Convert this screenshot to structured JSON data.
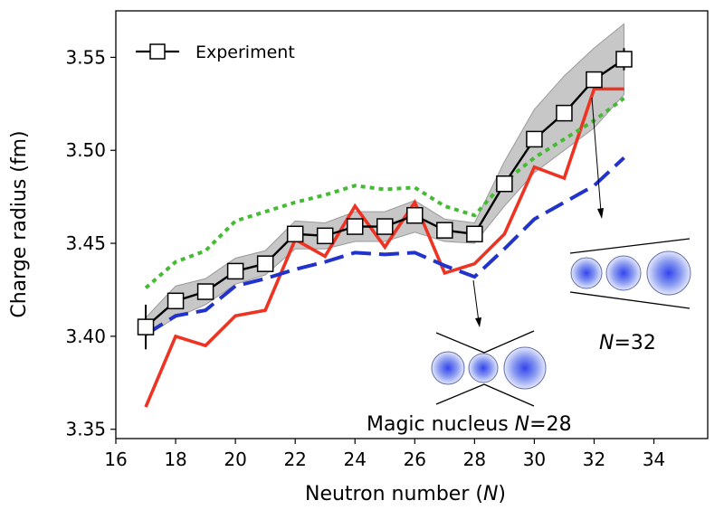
{
  "chart_data": {
    "type": "line",
    "xlabel": "Neutron number (",
    "xlabel_var": "N",
    "xlabel_end": ")",
    "ylabel": "Charge radius (fm)",
    "xlim": [
      16,
      35.8
    ],
    "ylim": [
      3.345,
      3.575
    ],
    "xticks": [
      16,
      18,
      20,
      22,
      24,
      26,
      28,
      30,
      32,
      34
    ],
    "yticks": [
      3.35,
      3.4,
      3.45,
      3.5,
      3.55
    ],
    "ytick_labels": [
      "3.35",
      "3.40",
      "3.45",
      "3.50",
      "3.55"
    ],
    "grid": false,
    "legend_position": "top-left",
    "series": [
      {
        "name": "Experiment",
        "style": "solid-with-open-square-markers",
        "color": "#000000",
        "x": [
          17,
          18,
          19,
          20,
          21,
          22,
          23,
          24,
          25,
          26,
          27,
          28,
          29,
          30,
          31,
          32,
          33
        ],
        "y": [
          3.405,
          3.419,
          3.424,
          3.435,
          3.439,
          3.455,
          3.454,
          3.459,
          3.459,
          3.465,
          3.457,
          3.455,
          3.482,
          3.506,
          3.52,
          3.538,
          3.549
        ],
        "yerr": [
          0.012,
          0.004,
          0.003,
          0.003,
          0.003,
          0.003,
          0.003,
          0.003,
          0.003,
          0.003,
          0.003,
          0.003,
          0.003,
          0.003,
          0.003,
          0.003,
          0.006
        ],
        "band_lower": [
          3.4,
          3.41,
          3.417,
          3.428,
          3.433,
          3.447,
          3.447,
          3.451,
          3.451,
          3.456,
          3.451,
          3.45,
          3.47,
          3.488,
          3.5,
          3.512,
          3.53
        ],
        "band_upper": [
          3.41,
          3.427,
          3.431,
          3.442,
          3.446,
          3.462,
          3.461,
          3.467,
          3.467,
          3.473,
          3.463,
          3.461,
          3.494,
          3.522,
          3.54,
          3.555,
          3.568
        ]
      },
      {
        "style": "solid",
        "color": "#ee3322",
        "x": [
          17,
          18,
          19,
          20,
          21,
          22,
          23,
          24,
          25,
          26,
          27,
          28,
          29,
          30,
          31,
          32,
          33
        ],
        "y": [
          3.362,
          3.4,
          3.395,
          3.411,
          3.414,
          3.452,
          3.443,
          3.47,
          3.448,
          3.472,
          3.434,
          3.439,
          3.455,
          3.491,
          3.485,
          3.533,
          3.533
        ]
      },
      {
        "style": "dashed",
        "color": "#2233cc",
        "x": [
          17,
          18,
          19,
          20,
          21,
          22,
          23,
          24,
          25,
          26,
          27,
          28,
          29,
          30,
          31,
          32,
          33
        ],
        "y": [
          3.401,
          3.411,
          3.414,
          3.427,
          3.431,
          3.436,
          3.44,
          3.445,
          3.444,
          3.445,
          3.438,
          3.432,
          3.447,
          3.463,
          3.472,
          3.481,
          3.496
        ]
      },
      {
        "style": "dotted",
        "color": "#44bb33",
        "x": [
          17,
          18,
          19,
          20,
          21,
          22,
          23,
          24,
          25,
          26,
          27,
          28,
          29,
          30,
          31,
          32,
          33
        ],
        "y": [
          3.426,
          3.44,
          3.446,
          3.462,
          3.467,
          3.472,
          3.476,
          3.481,
          3.479,
          3.48,
          3.47,
          3.465,
          3.483,
          3.496,
          3.506,
          3.516,
          3.528
        ]
      }
    ],
    "annotations": [
      {
        "text": "Magic nucleus ",
        "var": "N",
        "value": "=28",
        "points_to_x": 28.3
      },
      {
        "text": "",
        "var": "N",
        "value": "=32",
        "points_to_x": 32.3
      }
    ]
  }
}
